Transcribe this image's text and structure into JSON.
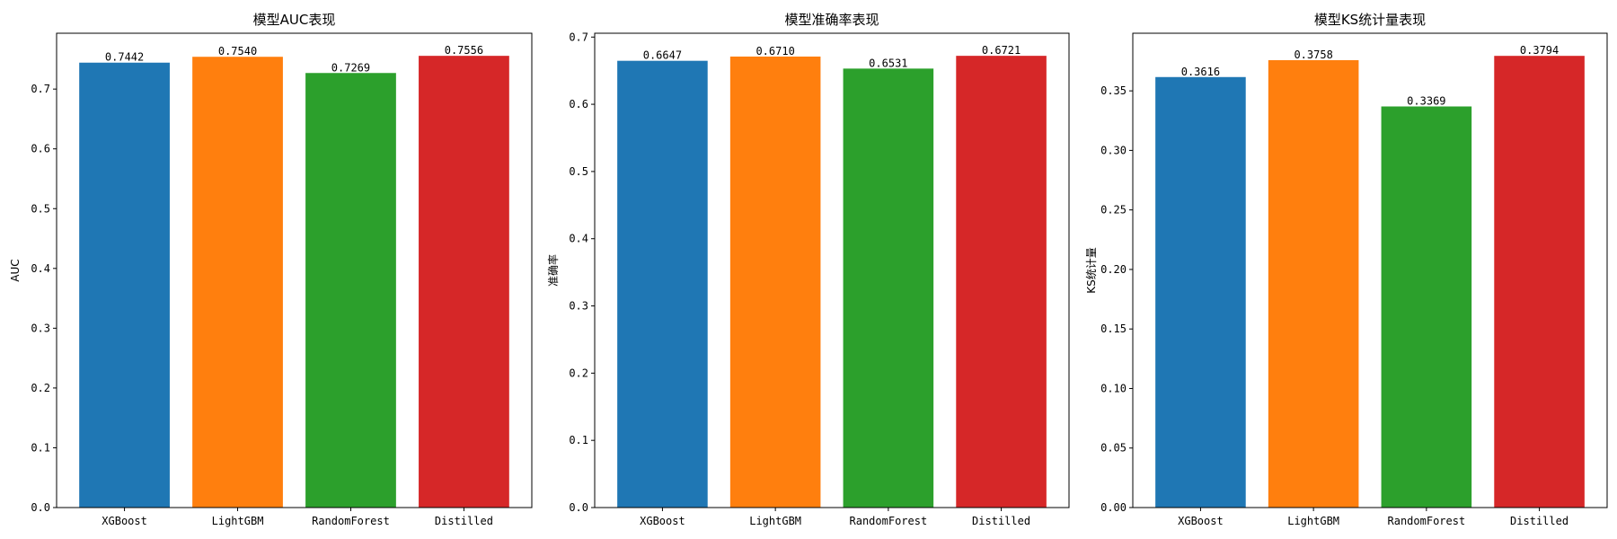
{
  "chart_data": [
    {
      "type": "bar",
      "title": "模型AUC表现",
      "xlabel": "",
      "ylabel": "AUC",
      "categories": [
        "XGBoost",
        "LightGBM",
        "RandomForest",
        "Distilled"
      ],
      "values": [
        0.7442,
        0.754,
        0.7269,
        0.7556
      ],
      "value_labels": [
        "0.7442",
        "0.7540",
        "0.7269",
        "0.7556"
      ],
      "colors": [
        "#1f77b4",
        "#ff7f0e",
        "#2ca02c",
        "#d62728"
      ],
      "ylim": [
        0,
        0.7934
      ],
      "yticks": [
        0.0,
        0.1,
        0.2,
        0.3,
        0.4,
        0.5,
        0.6,
        0.7
      ],
      "ytick_labels": [
        "0.0",
        "0.1",
        "0.2",
        "0.3",
        "0.4",
        "0.5",
        "0.6",
        "0.7"
      ],
      "grid": false,
      "legend": "none"
    },
    {
      "type": "bar",
      "title": "模型准确率表现",
      "xlabel": "",
      "ylabel": "准确率",
      "categories": [
        "XGBoost",
        "LightGBM",
        "RandomForest",
        "Distilled"
      ],
      "values": [
        0.6647,
        0.671,
        0.6531,
        0.6721
      ],
      "value_labels": [
        "0.6647",
        "0.6710",
        "0.6531",
        "0.6721"
      ],
      "colors": [
        "#1f77b4",
        "#ff7f0e",
        "#2ca02c",
        "#d62728"
      ],
      "ylim": [
        0,
        0.7057
      ],
      "yticks": [
        0.0,
        0.1,
        0.2,
        0.3,
        0.4,
        0.5,
        0.6,
        0.7
      ],
      "ytick_labels": [
        "0.0",
        "0.1",
        "0.2",
        "0.3",
        "0.4",
        "0.5",
        "0.6",
        "0.7"
      ],
      "grid": false,
      "legend": "none"
    },
    {
      "type": "bar",
      "title": "模型KS统计量表现",
      "xlabel": "",
      "ylabel": "KS统计量",
      "categories": [
        "XGBoost",
        "LightGBM",
        "RandomForest",
        "Distilled"
      ],
      "values": [
        0.3616,
        0.3758,
        0.3369,
        0.3794
      ],
      "value_labels": [
        "0.3616",
        "0.3758",
        "0.3369",
        "0.3794"
      ],
      "colors": [
        "#1f77b4",
        "#ff7f0e",
        "#2ca02c",
        "#d62728"
      ],
      "ylim": [
        0,
        0.3984
      ],
      "yticks": [
        0.0,
        0.05,
        0.1,
        0.15,
        0.2,
        0.25,
        0.3,
        0.35
      ],
      "ytick_labels": [
        "0.00",
        "0.05",
        "0.10",
        "0.15",
        "0.20",
        "0.25",
        "0.30",
        "0.35"
      ],
      "grid": false,
      "legend": "none"
    }
  ]
}
